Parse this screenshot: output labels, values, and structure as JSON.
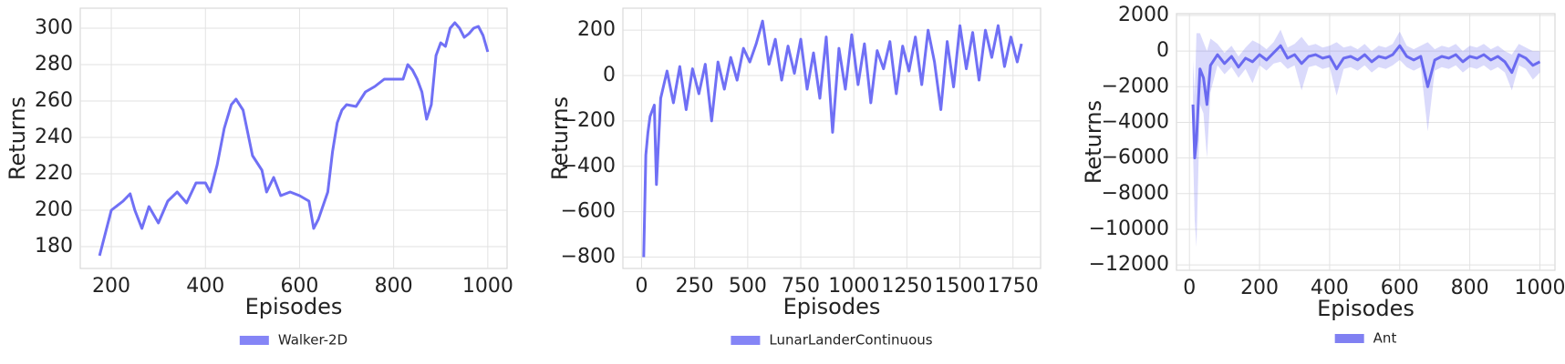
{
  "chart_data": [
    {
      "type": "line",
      "xlabel": "Episodes",
      "ylabel": "Returns",
      "grid": true,
      "legend": "below",
      "xlim": [
        134,
        1041
      ],
      "ylim": [
        168,
        311
      ],
      "xticks": [
        200,
        400,
        600,
        800,
        1000
      ],
      "yticks": [
        180,
        200,
        220,
        240,
        260,
        280,
        300
      ],
      "x": [
        175,
        200,
        225,
        240,
        250,
        265,
        280,
        300,
        320,
        340,
        360,
        380,
        400,
        410,
        425,
        440,
        455,
        465,
        480,
        500,
        520,
        530,
        545,
        560,
        580,
        600,
        620,
        630,
        640,
        660,
        670,
        680,
        690,
        700,
        720,
        740,
        760,
        780,
        800,
        820,
        830,
        840,
        850,
        860,
        870,
        880,
        890,
        900,
        910,
        920,
        930,
        940,
        950,
        960,
        970,
        980,
        990,
        1000
      ],
      "series": [
        {
          "name": "Walker-2D",
          "color": "#7070f5",
          "values": [
            175,
            200,
            205,
            209,
            200,
            190,
            202,
            193,
            205,
            210,
            204,
            215,
            215,
            210,
            225,
            245,
            258,
            261,
            255,
            230,
            222,
            210,
            218,
            208,
            210,
            208,
            205,
            190,
            195,
            210,
            232,
            248,
            255,
            258,
            257,
            265,
            268,
            272,
            272,
            272,
            280,
            277,
            272,
            265,
            250,
            258,
            285,
            292,
            290,
            300,
            303,
            300,
            295,
            297,
            300,
            301,
            296,
            287
          ]
        }
      ]
    },
    {
      "type": "line",
      "xlabel": "Episodes",
      "ylabel": "Returns",
      "grid": true,
      "legend": "below",
      "xlim": [
        -88,
        1880
      ],
      "ylim": [
        -850,
        297
      ],
      "xticks": [
        0,
        250,
        500,
        750,
        1000,
        1250,
        1500,
        1750
      ],
      "yticks": [
        {
          "value": -800,
          "label": "−800"
        },
        {
          "value": -600,
          "label": "−600"
        },
        {
          "value": -400,
          "label": "−400"
        },
        {
          "value": -200,
          "label": "−200"
        },
        0,
        200
      ],
      "x": [
        10,
        20,
        30,
        40,
        60,
        70,
        90,
        120,
        150,
        180,
        210,
        240,
        270,
        300,
        330,
        360,
        390,
        420,
        450,
        480,
        510,
        540,
        570,
        600,
        630,
        660,
        690,
        720,
        750,
        780,
        810,
        840,
        870,
        900,
        930,
        960,
        990,
        1020,
        1050,
        1080,
        1110,
        1140,
        1170,
        1200,
        1230,
        1260,
        1290,
        1320,
        1350,
        1380,
        1410,
        1440,
        1470,
        1500,
        1530,
        1560,
        1590,
        1620,
        1650,
        1680,
        1710,
        1740,
        1770,
        1790
      ],
      "series": [
        {
          "name": "LunarLanderContinuous",
          "color": "#7070f5",
          "values": [
            -800,
            -350,
            -250,
            -180,
            -130,
            -480,
            -100,
            20,
            -120,
            40,
            -150,
            30,
            -80,
            50,
            -200,
            60,
            -60,
            80,
            -20,
            120,
            60,
            140,
            240,
            50,
            160,
            -20,
            130,
            10,
            160,
            -60,
            100,
            -100,
            170,
            -250,
            120,
            -60,
            180,
            -40,
            140,
            -120,
            110,
            30,
            150,
            -80,
            130,
            20,
            170,
            -40,
            200,
            60,
            -150,
            150,
            -50,
            220,
            30,
            190,
            -20,
            200,
            80,
            220,
            40,
            170,
            60,
            140
          ]
        }
      ]
    },
    {
      "type": "line",
      "xlabel": "Episodes",
      "ylabel": "Returns",
      "grid": true,
      "legend": "below",
      "xlim": [
        -37,
        1043
      ],
      "ylim": [
        -12300,
        2100
      ],
      "xticks": [
        0,
        200,
        400,
        600,
        800,
        1000
      ],
      "yticks": [
        {
          "value": -12000,
          "label": "−12000"
        },
        {
          "value": -10000,
          "label": "−10000"
        },
        {
          "value": -8000,
          "label": "−8000"
        },
        {
          "value": -6000,
          "label": "−6000"
        },
        {
          "value": -4000,
          "label": "−4000"
        },
        {
          "value": -2000,
          "label": "−2000"
        },
        0,
        2000
      ],
      "x": [
        10,
        15,
        20,
        30,
        40,
        50,
        60,
        80,
        100,
        120,
        140,
        160,
        180,
        200,
        220,
        240,
        260,
        280,
        300,
        320,
        340,
        360,
        380,
        400,
        420,
        440,
        460,
        480,
        500,
        520,
        540,
        560,
        580,
        600,
        620,
        640,
        660,
        680,
        700,
        720,
        740,
        760,
        780,
        800,
        820,
        840,
        860,
        880,
        900,
        920,
        940,
        960,
        980,
        1000
      ],
      "series": [
        {
          "name": "Ant",
          "color": "#6a6af0",
          "values": [
            -3000,
            -6000,
            -5000,
            -1000,
            -1500,
            -3000,
            -800,
            -200,
            -700,
            -300,
            -900,
            -400,
            -600,
            -200,
            -500,
            -100,
            300,
            -400,
            -200,
            -700,
            -300,
            -200,
            -400,
            -300,
            -1000,
            -400,
            -300,
            -500,
            -200,
            -600,
            -300,
            -400,
            -200,
            300,
            -300,
            -500,
            -300,
            -2000,
            -500,
            -300,
            -400,
            -200,
            -600,
            -300,
            -400,
            -200,
            -500,
            -300,
            -600,
            -1200,
            -200,
            -400,
            -800,
            -600
          ],
          "lower": [
            -5500,
            -9500,
            -11000,
            -3000,
            -3500,
            -6000,
            -2300,
            -800,
            -1300,
            -900,
            -1500,
            -1000,
            -1800,
            -800,
            -1100,
            -700,
            -600,
            -1000,
            -800,
            -2200,
            -900,
            -800,
            -1000,
            -900,
            -2500,
            -1000,
            -900,
            -1100,
            -800,
            -1200,
            -900,
            -1000,
            -800,
            -500,
            -900,
            -1100,
            -900,
            -4500,
            -1100,
            -900,
            -1000,
            -800,
            -1200,
            -900,
            -1000,
            -800,
            -1100,
            -900,
            -1200,
            -2200,
            -800,
            -1000,
            -1600,
            -1200
          ],
          "upper": [
            -500,
            -2500,
            1000,
            1000,
            500,
            0,
            700,
            400,
            -100,
            300,
            -300,
            200,
            600,
            400,
            100,
            500,
            1200,
            200,
            400,
            800,
            300,
            400,
            200,
            300,
            500,
            200,
            300,
            100,
            400,
            0,
            300,
            200,
            400,
            1100,
            300,
            100,
            300,
            500,
            100,
            300,
            200,
            400,
            0,
            300,
            200,
            400,
            100,
            300,
            0,
            -200,
            400,
            200,
            0,
            0
          ]
        }
      ]
    }
  ]
}
